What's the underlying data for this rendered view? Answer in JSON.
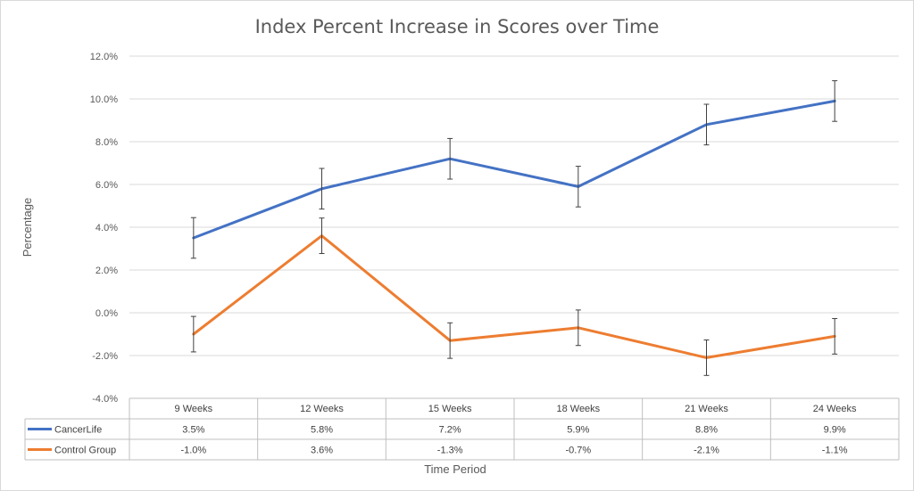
{
  "chart_data": {
    "type": "line",
    "title": "Index Percent Increase in Scores over Time",
    "xlabel": "Time Period",
    "ylabel": "Percentage",
    "categories": [
      "9 Weeks",
      "12 Weeks",
      "15 Weeks",
      "18 Weeks",
      "21 Weeks",
      "24 Weeks"
    ],
    "ylim": [
      -4.0,
      12.0
    ],
    "yticks": [
      -4.0,
      -2.0,
      0.0,
      2.0,
      4.0,
      6.0,
      8.0,
      10.0,
      12.0
    ],
    "ytick_labels": [
      "-4.0%",
      "-2.0%",
      "0.0%",
      "2.0%",
      "4.0%",
      "6.0%",
      "8.0%",
      "10.0%",
      "12.0%"
    ],
    "grid": true,
    "data_table": true,
    "error_bars": true,
    "series": [
      {
        "name": "CancerLife",
        "color": "#4472c4",
        "values": [
          3.5,
          5.8,
          7.2,
          5.9,
          8.8,
          9.9
        ],
        "labels": [
          "3.5%",
          "5.8%",
          "7.2%",
          "5.9%",
          "8.8%",
          "9.9%"
        ],
        "error": [
          0.95,
          0.95,
          0.95,
          0.95,
          0.95,
          0.95
        ]
      },
      {
        "name": "Control Group",
        "color": "#ed7d31",
        "values": [
          -1.0,
          3.6,
          -1.3,
          -0.7,
          -2.1,
          -1.1
        ],
        "labels": [
          "-1.0%",
          "3.6%",
          "-1.3%",
          "-0.7%",
          "-2.1%",
          "-1.1%"
        ],
        "error": [
          0.83,
          0.83,
          0.83,
          0.83,
          0.83,
          0.83
        ]
      }
    ]
  }
}
